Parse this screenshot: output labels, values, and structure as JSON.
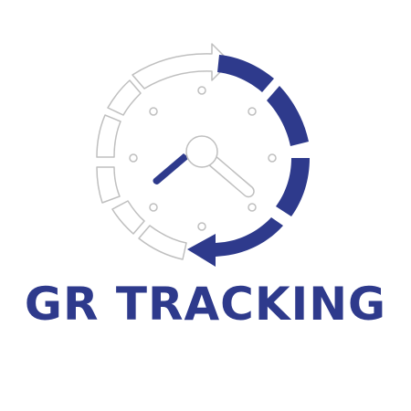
{
  "brand": {
    "name": "GR TRACKING"
  },
  "colors": {
    "primary": "#2e3a8c",
    "outline": "#bfbfbf",
    "background": "#ffffff"
  },
  "icons": {
    "logo": "clock-with-circular-arrows-icon"
  }
}
